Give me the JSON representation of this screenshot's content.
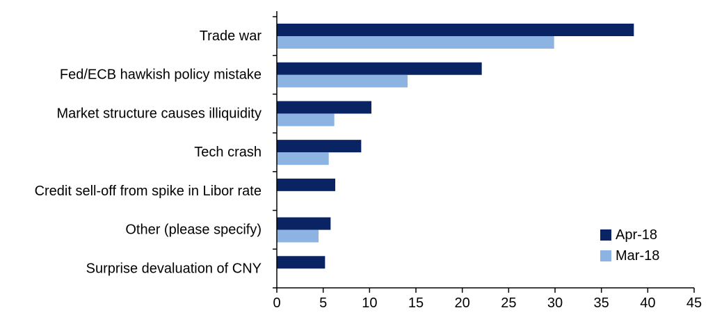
{
  "chart_data": {
    "type": "bar",
    "orientation": "horizontal",
    "title": "",
    "xlabel": "",
    "ylabel": "",
    "categories": [
      "Trade war",
      "Fed/ECB hawkish policy mistake",
      "Market structure causes illiquidity",
      "Tech crash",
      "Credit sell-off from spike in Libor rate",
      "Other (please specify)",
      "Surprise devaluation of CNY"
    ],
    "series": [
      {
        "name": "Apr-18",
        "color": "#0a2463",
        "values": [
          38.5,
          22.1,
          10.2,
          9.1,
          6.3,
          5.8,
          5.2
        ]
      },
      {
        "name": "Mar-18",
        "color": "#8db3e2",
        "values": [
          29.9,
          14.1,
          6.2,
          5.6,
          null,
          4.5,
          null
        ]
      }
    ],
    "xlim": [
      0,
      45
    ],
    "xticks": [
      0,
      5,
      10,
      15,
      20,
      25,
      30,
      35,
      40,
      45
    ],
    "grid": false,
    "legend_position": "bottom-right"
  }
}
